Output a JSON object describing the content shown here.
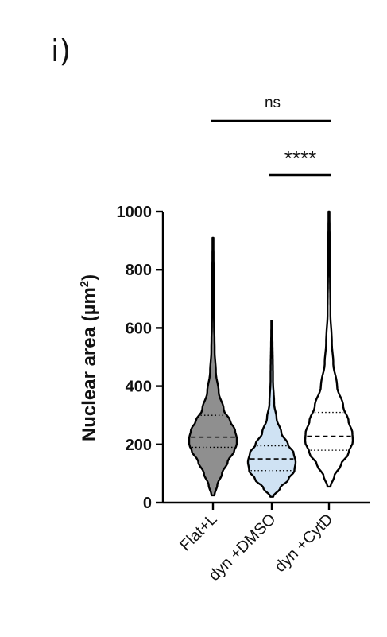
{
  "panel_label": "i)",
  "chart_data": {
    "type": "violin",
    "ylabel": "Nuclear area (µm²)",
    "ylabel_main": "Nuclear area (µm",
    "ylabel_sup": "2",
    "ylabel_close": ")",
    "ylim": [
      0,
      1000
    ],
    "yticks": [
      0,
      200,
      400,
      600,
      800,
      1000
    ],
    "categories": [
      "Flat+L",
      "dyn +DMSO",
      "dyn +CytD"
    ],
    "series": [
      {
        "category": "Flat+L",
        "fill": "#8f8f8f",
        "min": 25,
        "max": 910,
        "q1": 190,
        "median": 225,
        "q3": 300,
        "profile": [
          [
            25,
            0.06
          ],
          [
            60,
            0.18
          ],
          [
            100,
            0.38
          ],
          [
            140,
            0.62
          ],
          [
            180,
            0.9
          ],
          [
            200,
            1.0
          ],
          [
            220,
            1.0
          ],
          [
            250,
            0.92
          ],
          [
            280,
            0.72
          ],
          [
            320,
            0.45
          ],
          [
            380,
            0.24
          ],
          [
            450,
            0.12
          ],
          [
            520,
            0.07
          ],
          [
            650,
            0.04
          ],
          [
            910,
            0.02
          ]
        ]
      },
      {
        "category": "dyn +DMSO",
        "fill": "#cfe2f3",
        "min": 20,
        "max": 625,
        "q1": 110,
        "median": 150,
        "q3": 195,
        "profile": [
          [
            20,
            0.06
          ],
          [
            50,
            0.35
          ],
          [
            80,
            0.7
          ],
          [
            110,
            0.95
          ],
          [
            140,
            1.0
          ],
          [
            170,
            0.92
          ],
          [
            200,
            0.68
          ],
          [
            240,
            0.4
          ],
          [
            290,
            0.2
          ],
          [
            340,
            0.1
          ],
          [
            420,
            0.05
          ],
          [
            625,
            0.02
          ]
        ]
      },
      {
        "category": "dyn +CytD",
        "fill": "#ffffff",
        "min": 55,
        "max": 1000,
        "q1": 180,
        "median": 228,
        "q3": 310,
        "profile": [
          [
            55,
            0.06
          ],
          [
            90,
            0.22
          ],
          [
            130,
            0.5
          ],
          [
            170,
            0.82
          ],
          [
            210,
            1.0
          ],
          [
            240,
            0.98
          ],
          [
            280,
            0.82
          ],
          [
            330,
            0.6
          ],
          [
            400,
            0.34
          ],
          [
            480,
            0.18
          ],
          [
            550,
            0.12
          ],
          [
            650,
            0.06
          ],
          [
            800,
            0.04
          ],
          [
            1000,
            0.02
          ]
        ]
      }
    ],
    "significance": [
      {
        "label": "ns",
        "from": 0,
        "to": 2
      },
      {
        "label": "****",
        "from": 1,
        "to": 2
      }
    ]
  }
}
